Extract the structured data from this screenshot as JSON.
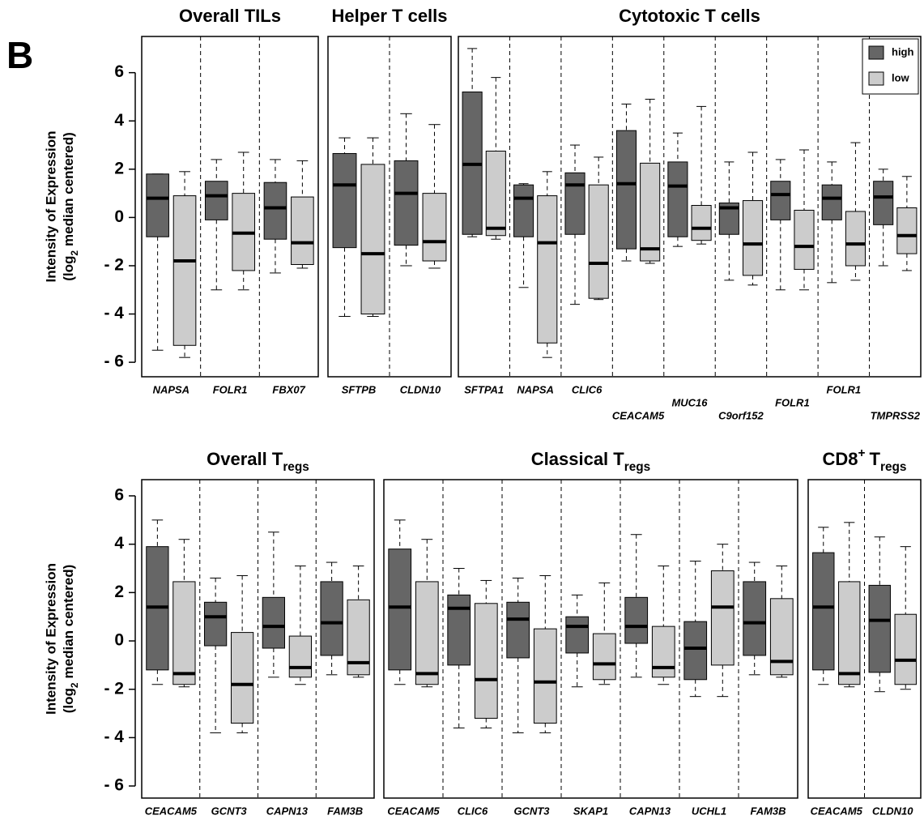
{
  "panel_label": "B",
  "chart_data": [
    {
      "type": "box",
      "title_parts": [
        {
          "text": "Overall TILs"
        }
      ],
      "y_label": "Intensity of Expression",
      "y_label_2": [
        {
          "text": "(log"
        },
        {
          "text": "2",
          "sub": true
        },
        {
          "text": "median centered)"
        }
      ],
      "ylim": [
        -6.6,
        7.5
      ],
      "yticks": [
        {
          "value": -6,
          "label": "- 6"
        },
        {
          "value": -4,
          "label": "- 4"
        },
        {
          "value": -2,
          "label": "- 2"
        },
        0,
        2,
        4,
        6
      ],
      "categories": [
        "NAPSA",
        "FOLR1",
        "FBX07"
      ],
      "series": [
        {
          "name": "high",
          "color": "#666666",
          "boxes": [
            {
              "min": -5.5,
              "q1": -0.8,
              "median": 0.8,
              "q3": 1.8,
              "max": 1.8
            },
            {
              "min": -3.0,
              "q1": -0.1,
              "median": 0.9,
              "q3": 1.5,
              "max": 2.4
            },
            {
              "min": -2.3,
              "q1": -0.9,
              "median": 0.4,
              "q3": 1.45,
              "max": 2.4
            }
          ]
        },
        {
          "name": "low",
          "color": "#cccccc",
          "boxes": [
            {
              "min": -5.8,
              "q1": -5.3,
              "median": -1.8,
              "q3": 0.9,
              "max": 1.9
            },
            {
              "min": -3.0,
              "q1": -2.2,
              "median": -0.65,
              "q3": 1.0,
              "max": 2.7
            },
            {
              "min": -2.1,
              "q1": -1.95,
              "median": -1.05,
              "q3": 0.85,
              "max": 2.35
            }
          ]
        }
      ]
    },
    {
      "type": "box",
      "title_parts": [
        {
          "text": "Helper T cells"
        }
      ],
      "ylim": [
        -6.6,
        7.5
      ],
      "categories": [
        "SFTPB",
        "CLDN10"
      ],
      "series": [
        {
          "name": "high",
          "color": "#666666",
          "boxes": [
            {
              "min": -4.1,
              "q1": -1.25,
              "median": 1.35,
              "q3": 2.65,
              "max": 3.3
            },
            {
              "min": -2.0,
              "q1": -1.15,
              "median": 1.0,
              "q3": 2.35,
              "max": 4.3
            }
          ]
        },
        {
          "name": "low",
          "color": "#cccccc",
          "boxes": [
            {
              "min": -4.1,
              "q1": -4.0,
              "median": -1.5,
              "q3": 2.2,
              "max": 3.3
            },
            {
              "min": -2.1,
              "q1": -1.8,
              "median": -1.0,
              "q3": 1.0,
              "max": 3.85
            }
          ]
        }
      ]
    },
    {
      "type": "box",
      "title_parts": [
        {
          "text": "Cytotoxic T cells"
        }
      ],
      "legend": "top-right",
      "ylim": [
        -6.6,
        7.5
      ],
      "categories": [
        "SFTPA1",
        "NAPSA",
        "CLIC6",
        "CEACAM5",
        "MUC16",
        "C9orf152",
        "FOLR1",
        "FOLR1",
        "TMPRSS2"
      ],
      "series": [
        {
          "name": "high",
          "color": "#666666",
          "boxes": [
            {
              "min": -0.8,
              "q1": -0.7,
              "median": 2.2,
              "q3": 5.2,
              "max": 7.0
            },
            {
              "min": -2.9,
              "q1": -0.8,
              "median": 0.8,
              "q3": 1.35,
              "max": 1.4
            },
            {
              "min": -3.6,
              "q1": -0.7,
              "median": 1.35,
              "q3": 1.85,
              "max": 3.0
            },
            {
              "min": -1.8,
              "q1": -1.3,
              "median": 1.4,
              "q3": 3.6,
              "max": 4.7
            },
            {
              "min": -1.2,
              "q1": -0.8,
              "median": 1.3,
              "q3": 2.3,
              "max": 3.5
            },
            {
              "min": -2.6,
              "q1": -0.7,
              "median": 0.4,
              "q3": 0.6,
              "max": 2.3
            },
            {
              "min": -3.0,
              "q1": -0.1,
              "median": 0.95,
              "q3": 1.5,
              "max": 2.4
            },
            {
              "min": -2.7,
              "q1": -0.1,
              "median": 0.8,
              "q3": 1.35,
              "max": 2.3
            },
            {
              "min": -2.0,
              "q1": -0.3,
              "median": 0.85,
              "q3": 1.5,
              "max": 2.0
            }
          ]
        },
        {
          "name": "low",
          "color": "#cccccc",
          "boxes": [
            {
              "min": -0.9,
              "q1": -0.75,
              "median": -0.45,
              "q3": 2.75,
              "max": 5.8
            },
            {
              "min": -5.8,
              "q1": -5.2,
              "median": -1.05,
              "q3": 0.9,
              "max": 1.9
            },
            {
              "min": -3.4,
              "q1": -3.35,
              "median": -1.9,
              "q3": 1.35,
              "max": 2.5
            },
            {
              "min": -1.9,
              "q1": -1.8,
              "median": -1.3,
              "q3": 2.25,
              "max": 4.9
            },
            {
              "min": -1.1,
              "q1": -0.95,
              "median": -0.45,
              "q3": 0.5,
              "max": 4.6
            },
            {
              "min": -2.8,
              "q1": -2.4,
              "median": -1.1,
              "q3": 0.7,
              "max": 2.7
            },
            {
              "min": -3.0,
              "q1": -2.15,
              "median": -1.2,
              "q3": 0.3,
              "max": 2.8
            },
            {
              "min": -2.6,
              "q1": -2.0,
              "median": -1.1,
              "q3": 0.25,
              "max": 3.1
            },
            {
              "min": -2.2,
              "q1": -1.5,
              "median": -0.75,
              "q3": 0.4,
              "max": 1.7
            }
          ]
        }
      ]
    },
    {
      "type": "box",
      "title_parts": [
        {
          "text": "Overall T"
        },
        {
          "text": "regs",
          "sub": true
        }
      ],
      "y_label": "Intensity of Expression",
      "y_label_2": [
        {
          "text": "(log"
        },
        {
          "text": "2",
          "sub": true
        },
        {
          "text": "median centered)"
        }
      ],
      "ylim": [
        -6.5,
        6.67
      ],
      "yticks": [
        {
          "value": -6,
          "label": "- 6"
        },
        {
          "value": -4,
          "label": "- 4"
        },
        {
          "value": -2,
          "label": "- 2"
        },
        0,
        2,
        4,
        6
      ],
      "categories": [
        "CEACAM5",
        "GCNT3",
        "CAPN13",
        "FAM3B"
      ],
      "series": [
        {
          "name": "high",
          "color": "#666666",
          "boxes": [
            {
              "min": -1.8,
              "q1": -1.2,
              "median": 1.4,
              "q3": 3.9,
              "max": 5.0
            },
            {
              "min": -3.8,
              "q1": -0.2,
              "median": 1.0,
              "q3": 1.6,
              "max": 2.6
            },
            {
              "min": -1.5,
              "q1": -0.3,
              "median": 0.6,
              "q3": 1.8,
              "max": 4.5
            },
            {
              "min": -1.4,
              "q1": -0.6,
              "median": 0.75,
              "q3": 2.45,
              "max": 3.25
            }
          ]
        },
        {
          "name": "low",
          "color": "#cccccc",
          "boxes": [
            {
              "min": -1.9,
              "q1": -1.8,
              "median": -1.35,
              "q3": 2.45,
              "max": 4.2
            },
            {
              "min": -3.8,
              "q1": -3.4,
              "median": -1.8,
              "q3": 0.35,
              "max": 2.7
            },
            {
              "min": -1.8,
              "q1": -1.5,
              "median": -1.1,
              "q3": 0.2,
              "max": 3.1
            },
            {
              "min": -1.5,
              "q1": -1.4,
              "median": -0.9,
              "q3": 1.7,
              "max": 3.1
            }
          ]
        }
      ]
    },
    {
      "type": "box",
      "title_parts": [
        {
          "text": "Classical T"
        },
        {
          "text": "regs",
          "sub": true
        }
      ],
      "ylim": [
        -6.5,
        6.67
      ],
      "categories": [
        "CEACAM5",
        "CLIC6",
        "GCNT3",
        "SKAP1",
        "CAPN13",
        "UCHL1",
        "FAM3B"
      ],
      "series": [
        {
          "name": "high",
          "color": "#666666",
          "boxes": [
            {
              "min": -1.8,
              "q1": -1.2,
              "median": 1.4,
              "q3": 3.8,
              "max": 5.0
            },
            {
              "min": -3.6,
              "q1": -1.0,
              "median": 1.35,
              "q3": 1.9,
              "max": 3.0
            },
            {
              "min": -3.8,
              "q1": -0.7,
              "median": 0.9,
              "q3": 1.6,
              "max": 2.6
            },
            {
              "min": -1.9,
              "q1": -0.5,
              "median": 0.6,
              "q3": 1.0,
              "max": 1.9
            },
            {
              "min": -1.5,
              "q1": -0.1,
              "median": 0.6,
              "q3": 1.8,
              "max": 4.4
            },
            {
              "min": -2.3,
              "q1": -1.6,
              "median": -0.3,
              "q3": 0.8,
              "max": 3.3
            },
            {
              "min": -1.4,
              "q1": -0.6,
              "median": 0.75,
              "q3": 2.45,
              "max": 3.25
            }
          ]
        },
        {
          "name": "low",
          "color": "#cccccc",
          "boxes": [
            {
              "min": -1.9,
              "q1": -1.8,
              "median": -1.35,
              "q3": 2.45,
              "max": 4.2
            },
            {
              "min": -3.6,
              "q1": -3.2,
              "median": -1.6,
              "q3": 1.55,
              "max": 2.5
            },
            {
              "min": -3.8,
              "q1": -3.4,
              "median": -1.7,
              "q3": 0.5,
              "max": 2.7
            },
            {
              "min": -1.8,
              "q1": -1.6,
              "median": -0.95,
              "q3": 0.3,
              "max": 2.4
            },
            {
              "min": -1.8,
              "q1": -1.5,
              "median": -1.1,
              "q3": 0.6,
              "max": 3.1
            },
            {
              "min": -2.3,
              "q1": -1.0,
              "median": 1.4,
              "q3": 2.9,
              "max": 4.0
            },
            {
              "min": -1.5,
              "q1": -1.4,
              "median": -0.85,
              "q3": 1.75,
              "max": 3.1
            }
          ]
        }
      ]
    },
    {
      "type": "box",
      "title_parts": [
        {
          "text": "CD8"
        },
        {
          "text": "+",
          "sup": true
        },
        {
          "text": "T"
        },
        {
          "text": "regs",
          "sub": true
        }
      ],
      "ylim": [
        -6.5,
        6.67
      ],
      "categories": [
        "CEACAM5",
        "CLDN10"
      ],
      "series": [
        {
          "name": "high",
          "color": "#666666",
          "boxes": [
            {
              "min": -1.8,
              "q1": -1.2,
              "median": 1.4,
              "q3": 3.65,
              "max": 4.7
            },
            {
              "min": -2.1,
              "q1": -1.3,
              "median": 0.85,
              "q3": 2.3,
              "max": 4.3
            }
          ]
        },
        {
          "name": "low",
          "color": "#cccccc",
          "boxes": [
            {
              "min": -1.9,
              "q1": -1.8,
              "median": -1.35,
              "q3": 2.45,
              "max": 4.9
            },
            {
              "min": -2.0,
              "q1": -1.8,
              "median": -0.8,
              "q3": 1.1,
              "max": 3.9
            }
          ]
        }
      ]
    }
  ]
}
